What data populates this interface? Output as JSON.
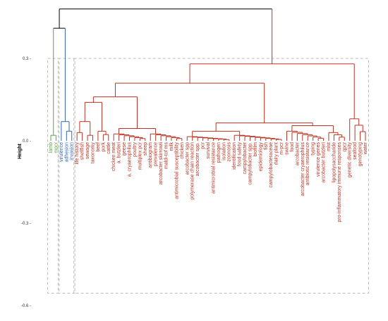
{
  "chart_data": {
    "type": "dendrogram",
    "ylabel": "Height",
    "ylim": [
      -0.6,
      0.45
    ],
    "yticks": [
      {
        "value": 0.3,
        "label": "0.3 -"
      },
      {
        "value": 0.0,
        "label": "0.0 -"
      },
      {
        "value": -0.3,
        "label": "-0.3 -"
      },
      {
        "value": -0.6,
        "label": "-0.6 -"
      }
    ],
    "grid": false,
    "colors": {
      "cluster1": "#55aa44",
      "cluster2": "#3366bb",
      "cluster3": "#bb3322",
      "root": "#000000",
      "box": "#bbbbbb"
    },
    "root_height": 0.48,
    "leaves": [
      {
        "label": "lamb",
        "cluster": 1
      },
      {
        "label": "mpcr",
        "cluster": 1
      },
      {
        "label": "virulence",
        "cluster": 2
      },
      {
        "label": "adhesion",
        "cluster": 2
      },
      {
        "label": "invasion",
        "cluster": 2
      },
      {
        "label": "life history",
        "cluster": 3
      },
      {
        "label": "shellfish",
        "cluster": 3
      },
      {
        "label": "sewage",
        "cluster": 3
      },
      {
        "label": "taxonomy",
        "cluster": 3
      },
      {
        "label": "beef",
        "cluster": 3
      },
      {
        "label": "pork",
        "cluster": 3
      },
      {
        "label": "cattle",
        "cluster": 3
      },
      {
        "label": "chicken meat",
        "cluster": 3
      },
      {
        "label": "a. butzleri",
        "cluster": 3
      },
      {
        "label": "geese",
        "cluster": 3
      },
      {
        "label": "a. cryaerophilus",
        "cluster": 3
      },
      {
        "label": "poultry",
        "cluster": 3
      },
      {
        "label": "multiplex pcr",
        "cluster": 3
      },
      {
        "label": "sheep",
        "cluster": 3
      },
      {
        "label": "antibiogram",
        "cluster": 3
      },
      {
        "label": "prevalence",
        "cluster": 3
      },
      {
        "label": "arcobacter skirrowii",
        "cluster": 3
      },
      {
        "label": "maldi-tof ms",
        "cluster": 3
      },
      {
        "label": "milk",
        "cluster": 3
      },
      {
        "label": "antimicrobial susceptibility",
        "cluster": 3
      },
      {
        "label": "chicken",
        "cluster": 3
      },
      {
        "label": "arcobacter spp",
        "cluster": 3
      },
      {
        "label": "polymerase chain reaction",
        "cluster": 3
      },
      {
        "label": "arcobacter spp.",
        "cluster": 3
      },
      {
        "label": "pcr",
        "cluster": 3
      },
      {
        "label": "survival",
        "cluster": 3
      },
      {
        "label": "antimicrobial resistance",
        "cluster": 3
      },
      {
        "label": "pathogen",
        "cluster": 3
      },
      {
        "label": "isolation",
        "cluster": 3
      },
      {
        "label": "zoonosis",
        "cluster": 3
      },
      {
        "label": "identification",
        "cluster": 3
      },
      {
        "label": "food safety",
        "cluster": 3
      },
      {
        "label": "campylobacter",
        "cluster": 3
      },
      {
        "label": "campylobacter spp.",
        "cluster": 3
      },
      {
        "label": "biofilm",
        "cluster": 3
      },
      {
        "label": "epidemiology",
        "cluster": 3
      },
      {
        "label": "fish",
        "cluster": 3
      },
      {
        "label": "campylobacteraceae",
        "cluster": 3
      },
      {
        "label": "dairy plant",
        "cluster": 3
      },
      {
        "label": "m-pcr",
        "cluster": 3
      },
      {
        "label": "swine",
        "cluster": 3
      },
      {
        "label": "food",
        "cluster": 3
      },
      {
        "label": "arcobacter",
        "cluster": 3
      },
      {
        "label": "arcobacter cryaerophilus",
        "cluster": 3
      },
      {
        "label": "antibiotic resistance",
        "cluster": 3
      },
      {
        "label": "typing",
        "cluster": 3
      },
      {
        "label": "virulence genes",
        "cluster": 3
      },
      {
        "label": "arcobacter butzleri",
        "cluster": 3
      },
      {
        "label": "mlst",
        "cluster": 3
      },
      {
        "label": "lipopolysaccharide",
        "cluster": 3
      },
      {
        "label": "pro-inflammatory immune responses",
        "cluster": 3
      },
      {
        "label": "qpcr",
        "cluster": 3
      },
      {
        "label": "genetic diversity",
        "cluster": 3
      },
      {
        "label": "seafood",
        "cluster": 3
      },
      {
        "label": "genotyping",
        "cluster": 3
      },
      {
        "label": "water",
        "cluster": 3
      }
    ]
  }
}
